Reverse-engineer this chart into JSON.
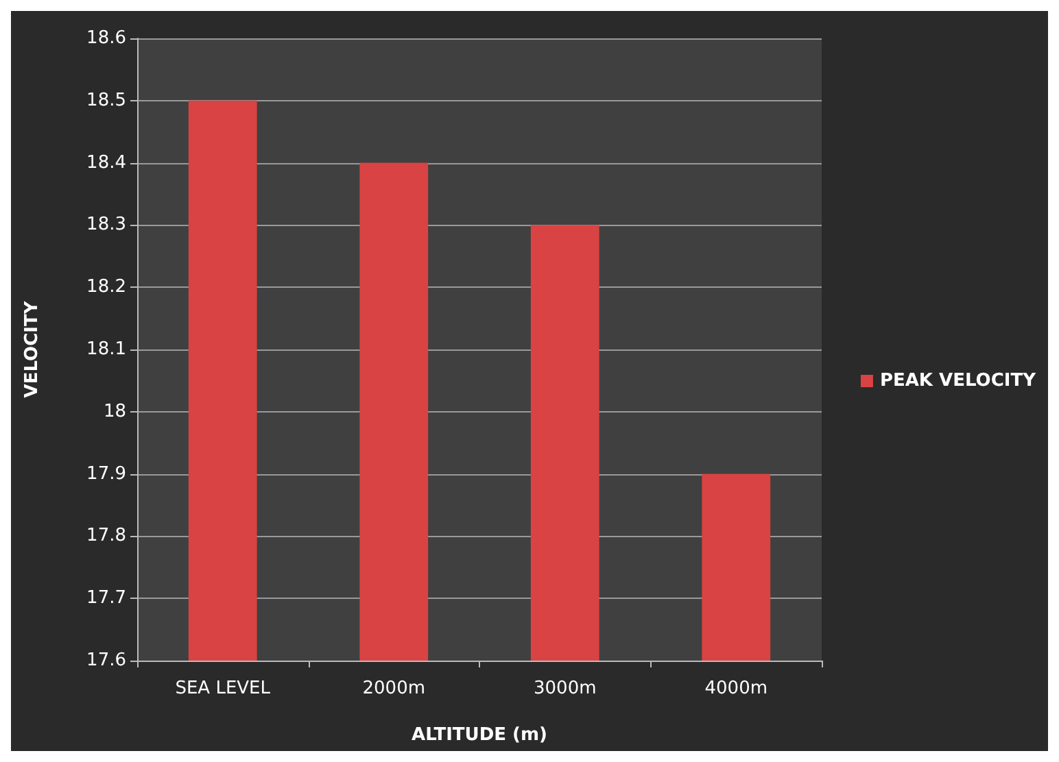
{
  "chart_data": {
    "type": "bar",
    "xlabel": "ALTITUDE (m)",
    "ylabel": "VELOCITY",
    "categories": [
      "SEA LEVEL",
      "2000m",
      "3000m",
      "4000m"
    ],
    "series": [
      {
        "name": "PEAK VELOCITY",
        "color": "#d94343",
        "values": [
          18.5,
          18.4,
          18.3,
          17.9
        ]
      }
    ],
    "ylim": [
      17.6,
      18.6
    ],
    "yticks": [
      17.6,
      17.7,
      17.8,
      17.9,
      18,
      18.1,
      18.2,
      18.3,
      18.4,
      18.5,
      18.6
    ],
    "grid": "y",
    "legend": "right"
  }
}
